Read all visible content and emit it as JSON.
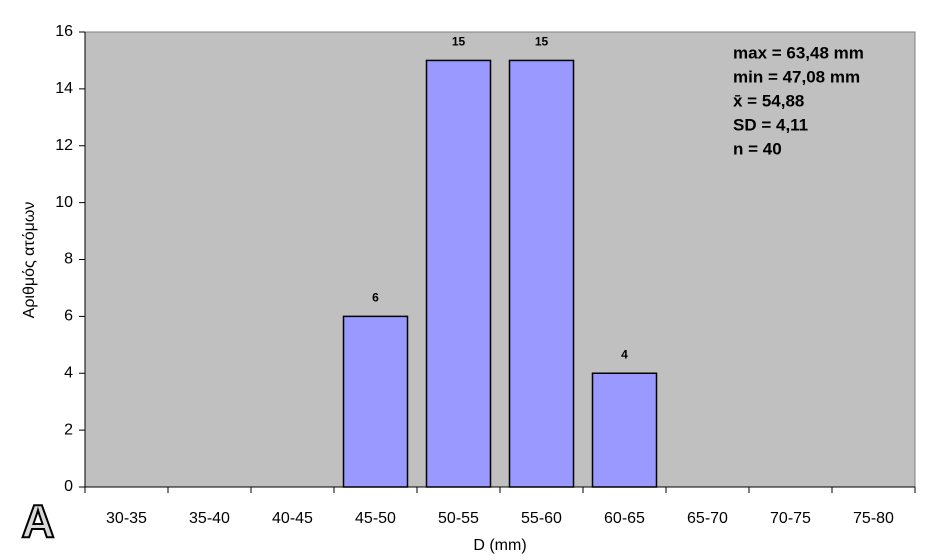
{
  "chart_data": {
    "type": "bar",
    "categories": [
      "30-35",
      "35-40",
      "40-45",
      "45-50",
      "50-55",
      "55-60",
      "60-65",
      "65-70",
      "70-75",
      "75-80"
    ],
    "values": [
      0,
      0,
      0,
      6,
      15,
      15,
      4,
      0,
      0,
      0
    ],
    "color": "#9999ff",
    "ylim": [
      0,
      16
    ],
    "yticks": [
      0,
      2,
      4,
      6,
      8,
      10,
      12,
      14,
      16
    ],
    "y_label": "Αριθμός ατόμων",
    "x_label": "D (mm)",
    "annotations": [
      "max = 63,48 mm",
      "min = 47,08 mm",
      "x̄ = 54,88",
      "SD = 4,11",
      "n = 40"
    ],
    "panel_label": "A"
  }
}
